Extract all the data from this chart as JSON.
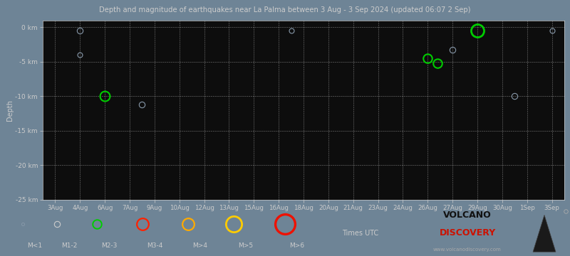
{
  "title": "Depth and magnitude of earthquakes near La Palma between 3 Aug - 3 Sep 2024 (updated 06:07 2 Sep)",
  "xlabel_dates": [
    "3Aug",
    "4Aug",
    "6Aug",
    "7Aug",
    "9Aug",
    "10Aug",
    "12Aug",
    "13Aug",
    "15Aug",
    "16Aug",
    "18Aug",
    "20Aug",
    "21Aug",
    "23Aug",
    "24Aug",
    "26Aug",
    "27Aug",
    "29Aug",
    "30Aug",
    "1Sep",
    "3Sep"
  ],
  "ylabel": "Depth",
  "ylim": [
    -25,
    1
  ],
  "yticks": [
    0,
    -5,
    -10,
    -15,
    -20,
    -25
  ],
  "ytick_labels": [
    "0 km",
    "-5 km",
    "-10 km",
    "-15 km",
    "-20 km",
    "-25 km"
  ],
  "bg_color": "#0d0d0d",
  "fig_bg_color": "#6e8496",
  "text_color": "#cccccc",
  "grid_color": "#ffffff",
  "title_color": "#cccccc",
  "earthquakes": [
    {
      "xi": 1.0,
      "depth": -0.5,
      "color": "#8899aa",
      "ms": 6,
      "lw": 0.8
    },
    {
      "xi": 1.0,
      "depth": -4.0,
      "color": "#8899aa",
      "ms": 5,
      "lw": 0.8
    },
    {
      "xi": 2.0,
      "depth": -10.0,
      "color": "#00cc00",
      "ms": 10,
      "lw": 1.5
    },
    {
      "xi": 3.5,
      "depth": -11.2,
      "color": "#8899aa",
      "ms": 6,
      "lw": 0.8
    },
    {
      "xi": 9.5,
      "depth": -0.5,
      "color": "#8899aa",
      "ms": 5,
      "lw": 0.8
    },
    {
      "xi": 15.0,
      "depth": -4.5,
      "color": "#00cc00",
      "ms": 9,
      "lw": 1.5
    },
    {
      "xi": 15.4,
      "depth": -5.2,
      "color": "#00cc00",
      "ms": 9,
      "lw": 1.5
    },
    {
      "xi": 16.0,
      "depth": -3.2,
      "color": "#8899aa",
      "ms": 6,
      "lw": 0.8
    },
    {
      "xi": 17.0,
      "depth": -0.5,
      "color": "#00cc00",
      "ms": 13,
      "lw": 2.0
    },
    {
      "xi": 18.5,
      "depth": -10.0,
      "color": "#8899aa",
      "ms": 6,
      "lw": 0.8
    },
    {
      "xi": 20.0,
      "depth": -0.5,
      "color": "#8899aa",
      "ms": 5,
      "lw": 0.8
    }
  ],
  "legend_colors": [
    "#8899aa",
    "#cccccc",
    "#00cc00",
    "#ff2200",
    "#ffaa00",
    "#ffcc00",
    "#ee1100"
  ],
  "legend_sizes": [
    3,
    6,
    9,
    12,
    12,
    16,
    20
  ],
  "legend_lws": [
    0.6,
    0.8,
    1.4,
    1.6,
    1.6,
    2.0,
    2.4
  ],
  "legend_labels": [
    "M<1",
    "M1-2",
    "M2-3",
    "M3-4",
    "M>4",
    "M>5",
    "M>6"
  ],
  "legend_label": "Times UTC"
}
